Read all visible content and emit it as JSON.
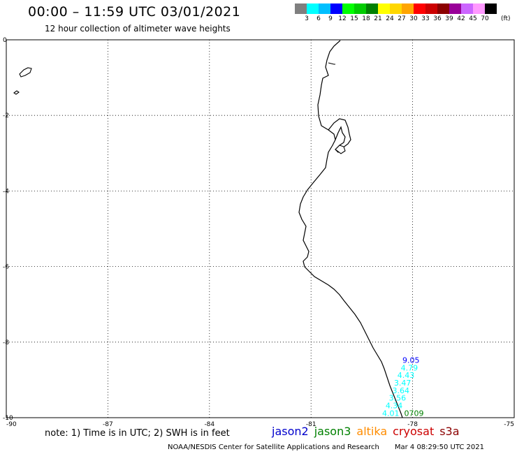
{
  "title": "00:00 – 11:59 UTC 03/01/2021",
  "subtitle": "12 hour collection of altimeter wave heights",
  "legend": {
    "colors": [
      "#7f7f7f",
      "#00ffff",
      "#00bfff",
      "#0000ff",
      "#00ff00",
      "#00cc00",
      "#008000",
      "#ffff00",
      "#ffd700",
      "#ffa500",
      "#ff0000",
      "#cc0000",
      "#8b0000",
      "#990099",
      "#cc66ff",
      "#ff99ff",
      "#000000"
    ],
    "labels": [
      "3",
      "6",
      "9",
      "12",
      "15",
      "18",
      "21",
      "24",
      "27",
      "30",
      "33",
      "36",
      "39",
      "42",
      "45",
      "70"
    ],
    "unit": "(ft)"
  },
  "axes": {
    "lat_labels": [
      "0",
      "-2",
      "-4",
      "-6",
      "-8",
      "-10"
    ],
    "lon_labels": [
      "-90",
      "-87",
      "-84",
      "-81",
      "-78",
      "-75"
    ],
    "lat_range": [
      -10,
      0
    ],
    "lon_range": [
      -90,
      -75
    ]
  },
  "wave_points": [
    {
      "label": "9.05",
      "color": "#0000ff",
      "lon": -78.3,
      "lat": -8.55
    },
    {
      "label": "4.79",
      "color": "#00ffff",
      "lon": -78.35,
      "lat": -8.75
    },
    {
      "label": "4.43",
      "color": "#00ffff",
      "lon": -78.45,
      "lat": -8.95
    },
    {
      "label": "3.47",
      "color": "#00ffff",
      "lon": -78.55,
      "lat": -9.15
    },
    {
      "label": "3.64",
      "color": "#00ffff",
      "lon": -78.6,
      "lat": -9.35
    },
    {
      "label": "3.56",
      "color": "#00ffff",
      "lon": -78.7,
      "lat": -9.55
    },
    {
      "label": "4.34",
      "color": "#00ffff",
      "lon": -78.8,
      "lat": -9.75
    },
    {
      "label": "4.01",
      "color": "#00ffff",
      "lon": -78.9,
      "lat": -9.95
    },
    {
      "label": "0709",
      "color": "#008000",
      "lon": -78.25,
      "lat": -9.95
    }
  ],
  "note": "note: 1) Time is in UTC; 2) SWH is in feet",
  "satellites": [
    {
      "name": "jason2",
      "color": "#0000cc"
    },
    {
      "name": "jason3",
      "color": "#008000"
    },
    {
      "name": "altika",
      "color": "#ff8c00"
    },
    {
      "name": "cryosat",
      "color": "#cc0000"
    },
    {
      "name": "s3a",
      "color": "#8b0000"
    }
  ],
  "credit": "NOAA/NESDIS Center for Satellite Applications and Research",
  "timestamp": "Mar  4 08:29:50 UTC 2021"
}
